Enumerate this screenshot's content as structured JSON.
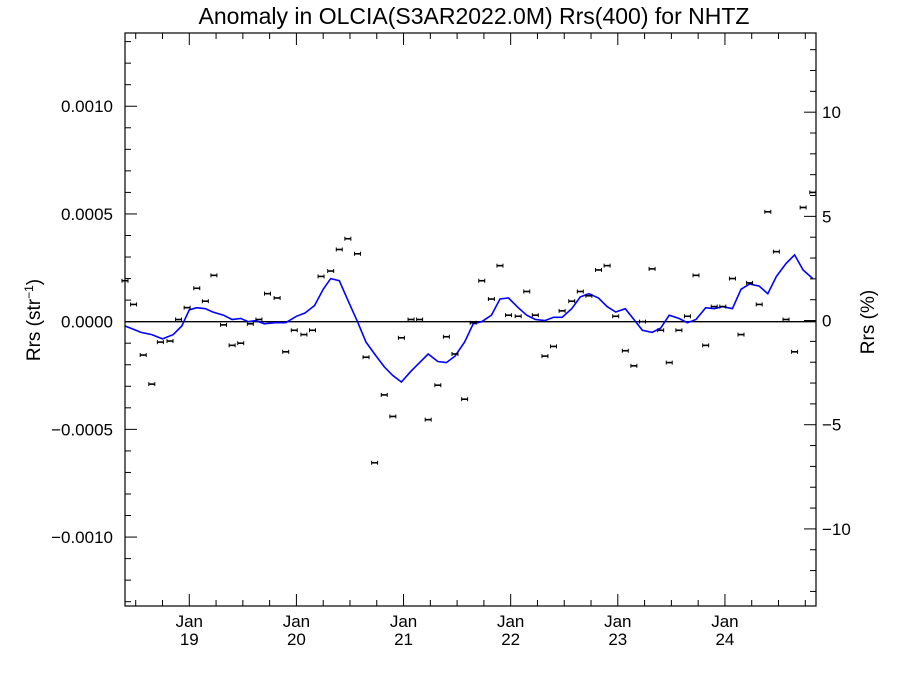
{
  "chart_data": {
    "type": "line",
    "title": "Anomaly in OLCIA(S3AR2022.0M) Rrs(400) for NHTZ",
    "ylabel_left": "Rrs (str",
    "ylabel_left_sup": "−1",
    "ylabel_left_close": ")",
    "ylabel_right": "Rrs (%)",
    "x_range": [
      2018.4,
      2024.85
    ],
    "y_left_range": [
      -0.00132,
      0.00134
    ],
    "y_right_range": [
      -13.7,
      13.8
    ],
    "left_ticks": [
      {
        "v": 0.001,
        "label": "0.0010"
      },
      {
        "v": 0.0005,
        "label": "0.0005"
      },
      {
        "v": 0.0,
        "label": "0.0000"
      },
      {
        "v": -0.0005,
        "label": "−0.0005"
      },
      {
        "v": -0.001,
        "label": "−0.0010"
      }
    ],
    "right_ticks": [
      {
        "v": 10,
        "label": "10"
      },
      {
        "v": 5,
        "label": "5"
      },
      {
        "v": 0,
        "label": "0"
      },
      {
        "v": -5,
        "label": "−5"
      },
      {
        "v": -10,
        "label": "−10"
      }
    ],
    "x_ticks": [
      {
        "v": 2019.0,
        "month": "Jan",
        "year": "19"
      },
      {
        "v": 2020.0,
        "month": "Jan",
        "year": "20"
      },
      {
        "v": 2021.0,
        "month": "Jan",
        "year": "21"
      },
      {
        "v": 2022.0,
        "month": "Jan",
        "year": "22"
      },
      {
        "v": 2023.0,
        "month": "Jan",
        "year": "23"
      },
      {
        "v": 2024.0,
        "month": "Jan",
        "year": "24"
      }
    ],
    "line_color": "#0000ff",
    "point_color": "#000000",
    "zero_line": true,
    "points": [
      [
        2018.4,
        0.00019
      ],
      [
        2018.48,
        8e-05
      ],
      [
        2018.57,
        -0.000155
      ],
      [
        2018.65,
        -0.00029
      ],
      [
        2018.73,
        -9.5e-05
      ],
      [
        2018.82,
        -9e-05
      ],
      [
        2018.9,
        1e-05
      ],
      [
        2018.98,
        6.5e-05
      ],
      [
        2019.07,
        0.000155
      ],
      [
        2019.15,
        9.5e-05
      ],
      [
        2019.23,
        0.000215
      ],
      [
        2019.32,
        -1.5e-05
      ],
      [
        2019.4,
        -0.00011
      ],
      [
        2019.48,
        -0.0001
      ],
      [
        2019.57,
        -1e-05
      ],
      [
        2019.65,
        1e-05
      ],
      [
        2019.73,
        0.00013
      ],
      [
        2019.82,
        0.00011
      ],
      [
        2019.9,
        -0.00014
      ],
      [
        2019.98,
        -4e-05
      ],
      [
        2020.07,
        -6e-05
      ],
      [
        2020.15,
        -4e-05
      ],
      [
        2020.23,
        0.00021
      ],
      [
        2020.32,
        0.000235
      ],
      [
        2020.4,
        0.000335
      ],
      [
        2020.48,
        0.000385
      ],
      [
        2020.57,
        0.000315
      ],
      [
        2020.65,
        -0.000165
      ],
      [
        2020.73,
        -0.000655
      ],
      [
        2020.82,
        -0.00034
      ],
      [
        2020.9,
        -0.00044
      ],
      [
        2020.98,
        -7.5e-05
      ],
      [
        2021.07,
        1e-05
      ],
      [
        2021.15,
        1e-05
      ],
      [
        2021.23,
        -0.000455
      ],
      [
        2021.32,
        -0.000295
      ],
      [
        2021.4,
        -7e-05
      ],
      [
        2021.48,
        -0.00015
      ],
      [
        2021.57,
        -0.00036
      ],
      [
        2021.65,
        -5e-06
      ],
      [
        2021.73,
        0.00019
      ],
      [
        2021.82,
        0.000105
      ],
      [
        2021.9,
        0.00026
      ],
      [
        2021.98,
        3e-05
      ],
      [
        2022.07,
        2.5e-05
      ],
      [
        2022.15,
        0.00014
      ],
      [
        2022.23,
        3e-05
      ],
      [
        2022.32,
        -0.00016
      ],
      [
        2022.4,
        -0.000115
      ],
      [
        2022.48,
        5e-05
      ],
      [
        2022.57,
        9.5e-05
      ],
      [
        2022.65,
        0.00014
      ],
      [
        2022.73,
        0.00012
      ],
      [
        2022.82,
        0.00024
      ],
      [
        2022.9,
        0.00026
      ],
      [
        2022.98,
        2.5e-05
      ],
      [
        2023.07,
        -0.000135
      ],
      [
        2023.15,
        -0.000205
      ],
      [
        2023.23,
        0.0
      ],
      [
        2023.32,
        0.000245
      ],
      [
        2023.4,
        -4e-05
      ],
      [
        2023.48,
        -0.00019
      ],
      [
        2023.57,
        -4e-05
      ],
      [
        2023.65,
        2.5e-05
      ],
      [
        2023.73,
        0.000215
      ],
      [
        2023.82,
        -0.00011
      ],
      [
        2023.9,
        7e-05
      ],
      [
        2023.98,
        7e-05
      ],
      [
        2024.07,
        0.0002
      ],
      [
        2024.15,
        -6e-05
      ],
      [
        2024.23,
        0.00018
      ],
      [
        2024.32,
        8e-05
      ],
      [
        2024.4,
        0.00051
      ],
      [
        2024.48,
        0.000325
      ],
      [
        2024.57,
        1e-05
      ],
      [
        2024.65,
        -0.00014
      ],
      [
        2024.73,
        0.00053
      ],
      [
        2024.82,
        0.0006
      ]
    ],
    "smooth_line": [
      [
        2018.4,
        -2e-05
      ],
      [
        2018.55,
        -5e-05
      ],
      [
        2018.65,
        -6e-05
      ],
      [
        2018.75,
        -8e-05
      ],
      [
        2018.85,
        -6e-05
      ],
      [
        2018.93,
        -2e-05
      ],
      [
        2019.0,
        5.5e-05
      ],
      [
        2019.07,
        6.5e-05
      ],
      [
        2019.15,
        6e-05
      ],
      [
        2019.22,
        4.5e-05
      ],
      [
        2019.32,
        3e-05
      ],
      [
        2019.4,
        1e-05
      ],
      [
        2019.48,
        1.5e-05
      ],
      [
        2019.55,
        0.0
      ],
      [
        2019.62,
        5e-06
      ],
      [
        2019.7,
        -1e-05
      ],
      [
        2019.8,
        -5e-06
      ],
      [
        2019.9,
        -5e-06
      ],
      [
        2020.0,
        2.5e-05
      ],
      [
        2020.08,
        4e-05
      ],
      [
        2020.17,
        7.5e-05
      ],
      [
        2020.25,
        0.00015
      ],
      [
        2020.32,
        0.0002
      ],
      [
        2020.4,
        0.00019
      ],
      [
        2020.48,
        0.0001
      ],
      [
        2020.57,
        0.0
      ],
      [
        2020.65,
        -9.5e-05
      ],
      [
        2020.73,
        -0.00015
      ],
      [
        2020.82,
        -0.00021
      ],
      [
        2020.9,
        -0.00025
      ],
      [
        2020.98,
        -0.00028
      ],
      [
        2021.07,
        -0.00023
      ],
      [
        2021.15,
        -0.00019
      ],
      [
        2021.23,
        -0.00015
      ],
      [
        2021.32,
        -0.000185
      ],
      [
        2021.4,
        -0.00019
      ],
      [
        2021.48,
        -0.00016
      ],
      [
        2021.57,
        -9.5e-05
      ],
      [
        2021.65,
        -1e-05
      ],
      [
        2021.73,
        0.0
      ],
      [
        2021.82,
        3e-05
      ],
      [
        2021.9,
        0.000105
      ],
      [
        2021.98,
        0.00011
      ],
      [
        2022.07,
        6.5e-05
      ],
      [
        2022.15,
        3e-05
      ],
      [
        2022.23,
        1e-05
      ],
      [
        2022.32,
        5e-06
      ],
      [
        2022.4,
        2e-05
      ],
      [
        2022.48,
        2e-05
      ],
      [
        2022.57,
        6e-05
      ],
      [
        2022.65,
        0.000115
      ],
      [
        2022.73,
        0.00013
      ],
      [
        2022.82,
        0.00011
      ],
      [
        2022.9,
        7e-05
      ],
      [
        2022.98,
        4.5e-05
      ],
      [
        2023.07,
        6e-05
      ],
      [
        2023.15,
        1e-05
      ],
      [
        2023.23,
        -4e-05
      ],
      [
        2023.32,
        -5e-05
      ],
      [
        2023.4,
        -3e-05
      ],
      [
        2023.48,
        3e-05
      ],
      [
        2023.57,
        1.5e-05
      ],
      [
        2023.65,
        -5e-06
      ],
      [
        2023.73,
        1e-05
      ],
      [
        2023.82,
        6.5e-05
      ],
      [
        2023.9,
        6e-05
      ],
      [
        2023.98,
        7e-05
      ],
      [
        2024.07,
        6e-05
      ],
      [
        2024.15,
        0.00015
      ],
      [
        2024.23,
        0.000175
      ],
      [
        2024.32,
        0.000165
      ],
      [
        2024.4,
        0.00013
      ],
      [
        2024.48,
        0.00021
      ],
      [
        2024.57,
        0.00027
      ],
      [
        2024.65,
        0.00031
      ],
      [
        2024.73,
        0.00024
      ],
      [
        2024.82,
        0.0002
      ]
    ]
  }
}
